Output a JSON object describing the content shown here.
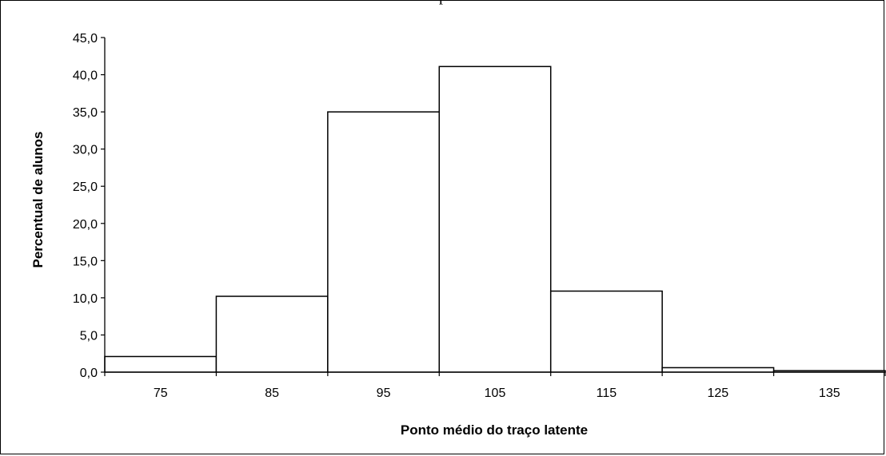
{
  "chart_data": {
    "type": "bar",
    "title": "",
    "top_clipped_text": "p",
    "xlabel": "Ponto médio do traço latente",
    "ylabel": "Percentual de alunos",
    "categories": [
      "75",
      "85",
      "95",
      "105",
      "115",
      "125",
      "135"
    ],
    "values": [
      2.1,
      10.2,
      35.0,
      41.1,
      10.9,
      0.6,
      0.2
    ],
    "ylim": [
      0,
      45
    ],
    "yticks": [
      "0,0",
      "5,0",
      "10,0",
      "15,0",
      "20,0",
      "25,0",
      "30,0",
      "35,0",
      "40,0",
      "45,0"
    ],
    "grid": false,
    "legend": "none",
    "colors": {
      "bar_fill": "#ffffff",
      "bar_stroke": "#000000",
      "axis": "#000000"
    }
  }
}
